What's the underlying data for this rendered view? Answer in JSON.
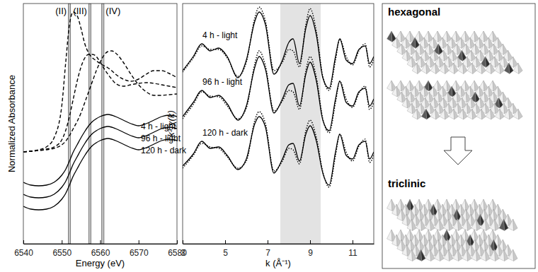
{
  "chart_data": [
    {
      "type": "line",
      "x_label": "Energy (eV)",
      "y_label": "Normalized Absorbance",
      "xlim": [
        6540,
        6580
      ],
      "xticks": [
        6540,
        6550,
        6560,
        6570,
        6580
      ],
      "ylim": [
        0,
        3.4
      ],
      "tick_labels": "x",
      "x": [
        6540,
        6542,
        6544,
        6546,
        6548,
        6550,
        6551,
        6552,
        6553,
        6554,
        6555,
        6556,
        6557,
        6558,
        6559,
        6560,
        6561,
        6562,
        6563,
        6564,
        6566,
        6568,
        6570,
        6572,
        6574,
        6576,
        6578,
        6580
      ],
      "annotations": [
        {
          "value": 6552.0,
          "label": "(II)"
        },
        {
          "value": 6557.3,
          "label": "(III)"
        },
        {
          "value": 6560.7,
          "label": "(IV)"
        }
      ],
      "series": [
        {
          "color": "#000000",
          "line_style": "dashed",
          "values": [
            1.3,
            1.31,
            1.33,
            1.37,
            1.5,
            1.95,
            2.55,
            3.1,
            3.28,
            3.23,
            3.05,
            2.83,
            2.7,
            2.63,
            2.59,
            2.55,
            2.52,
            2.49,
            2.45,
            2.4,
            2.33,
            2.3,
            2.33,
            2.4,
            2.45,
            2.45,
            2.41,
            2.35
          ]
        },
        {
          "color": "#000000",
          "line_style": "dashed",
          "values": [
            1.3,
            1.31,
            1.32,
            1.34,
            1.37,
            1.47,
            1.6,
            1.8,
            2.05,
            2.3,
            2.5,
            2.63,
            2.68,
            2.68,
            2.65,
            2.57,
            2.48,
            2.4,
            2.33,
            2.27,
            2.23,
            2.25,
            2.27,
            2.28,
            2.27,
            2.25,
            2.23,
            2.21
          ]
        },
        {
          "color": "#000000",
          "line_style": "dashed",
          "values": [
            1.3,
            1.31,
            1.32,
            1.33,
            1.35,
            1.4,
            1.45,
            1.53,
            1.63,
            1.73,
            1.85,
            2.0,
            2.15,
            2.3,
            2.45,
            2.57,
            2.67,
            2.72,
            2.73,
            2.7,
            2.57,
            2.4,
            2.25,
            2.15,
            2.1,
            2.1,
            2.11,
            2.12
          ]
        },
        {
          "name": "4 h - light",
          "color": "#000000",
          "line_style": "solid",
          "values": [
            0.87,
            0.83,
            0.82,
            0.83,
            0.87,
            0.97,
            1.05,
            1.17,
            1.3,
            1.4,
            1.5,
            1.59,
            1.67,
            1.73,
            1.77,
            1.8,
            1.82,
            1.83,
            1.82,
            1.8,
            1.75,
            1.7,
            1.67,
            1.7,
            1.75,
            1.8,
            1.82,
            1.8
          ]
        },
        {
          "name": "96 h - light",
          "color": "#000000",
          "line_style": "solid",
          "values": [
            0.7,
            0.66,
            0.65,
            0.66,
            0.7,
            0.8,
            0.88,
            1.0,
            1.13,
            1.23,
            1.33,
            1.42,
            1.5,
            1.56,
            1.6,
            1.63,
            1.65,
            1.66,
            1.65,
            1.63,
            1.58,
            1.53,
            1.5,
            1.53,
            1.58,
            1.63,
            1.65,
            1.63
          ]
        },
        {
          "name": "120 h - dark",
          "color": "#000000",
          "line_style": "solid",
          "values": [
            0.53,
            0.49,
            0.48,
            0.49,
            0.53,
            0.63,
            0.71,
            0.83,
            0.96,
            1.06,
            1.16,
            1.25,
            1.33,
            1.39,
            1.43,
            1.46,
            1.48,
            1.49,
            1.48,
            1.46,
            1.41,
            1.36,
            1.33,
            1.36,
            1.41,
            1.46,
            1.48,
            1.46
          ]
        }
      ]
    },
    {
      "type": "line",
      "x_label": "k (Å⁻¹)",
      "y_label": "k³·χ(k)",
      "xlim": [
        3,
        12
      ],
      "xticks": [
        3,
        5,
        7,
        9,
        11
      ],
      "ylim": [
        0,
        3.4
      ],
      "tick_labels": "x",
      "highlight_range": [
        7.6,
        9.5
      ],
      "x": [
        3,
        3.5,
        3.9,
        4.3,
        4.7,
        5.1,
        5.6,
        6.0,
        6.4,
        6.6,
        6.9,
        7.3,
        7.7,
        8.0,
        8.2,
        8.5,
        8.8,
        9.0,
        9.3,
        9.6,
        9.9,
        10.2,
        10.4,
        10.7,
        11.0,
        11.3,
        11.6,
        11.8,
        12
      ],
      "series": [
        {
          "name": "4 h - light",
          "color": "#000000",
          "line_style": "solid",
          "values": [
            2.45,
            2.65,
            2.83,
            2.73,
            2.77,
            2.65,
            2.35,
            2.6,
            3.15,
            3.28,
            3.1,
            2.4,
            2.6,
            2.85,
            2.9,
            2.55,
            3.05,
            3.23,
            2.95,
            2.35,
            2.2,
            2.65,
            2.9,
            2.6,
            2.55,
            2.75,
            2.8,
            2.55,
            2.65
          ]
        },
        {
          "color": "#000000",
          "line_style": "dotted",
          "values": [
            2.43,
            2.63,
            2.8,
            2.75,
            2.75,
            2.63,
            2.37,
            2.57,
            3.2,
            3.35,
            3.15,
            2.45,
            2.57,
            2.75,
            2.73,
            2.5,
            3.1,
            3.33,
            3.0,
            2.37,
            2.17,
            2.6,
            2.9,
            2.65,
            2.53,
            2.73,
            2.83,
            2.5,
            2.6
          ]
        },
        {
          "name": "96 h - light",
          "color": "#000000",
          "line_style": "solid",
          "values": [
            1.8,
            2.0,
            2.17,
            2.07,
            2.1,
            1.98,
            1.75,
            1.95,
            2.5,
            2.65,
            2.47,
            1.85,
            2.05,
            2.25,
            2.27,
            1.95,
            2.4,
            2.57,
            2.3,
            1.75,
            1.6,
            2.05,
            2.3,
            2.0,
            1.95,
            2.15,
            2.2,
            1.95,
            2.05
          ]
        },
        {
          "color": "#000000",
          "line_style": "dotted",
          "values": [
            1.77,
            1.97,
            2.15,
            2.09,
            2.08,
            1.95,
            1.77,
            1.92,
            2.55,
            2.73,
            2.52,
            1.88,
            2.02,
            2.17,
            2.15,
            1.9,
            2.45,
            2.65,
            2.35,
            1.77,
            1.57,
            2.0,
            2.3,
            2.05,
            1.93,
            2.13,
            2.23,
            1.9,
            2.0
          ]
        },
        {
          "name": "120 h - dark",
          "color": "#000000",
          "line_style": "solid",
          "values": [
            1.1,
            1.27,
            1.45,
            1.35,
            1.37,
            1.25,
            1.05,
            1.2,
            1.7,
            1.8,
            1.65,
            1.0,
            1.2,
            1.4,
            1.42,
            1.17,
            1.55,
            1.67,
            1.45,
            1.0,
            0.83,
            1.3,
            1.55,
            1.25,
            1.2,
            1.4,
            1.45,
            1.2,
            1.3
          ]
        },
        {
          "color": "#000000",
          "line_style": "dotted",
          "values": [
            1.07,
            1.25,
            1.42,
            1.37,
            1.35,
            1.23,
            1.07,
            1.17,
            1.75,
            1.87,
            1.7,
            1.03,
            1.17,
            1.35,
            1.33,
            1.13,
            1.6,
            1.75,
            1.5,
            1.02,
            0.8,
            1.25,
            1.55,
            1.3,
            1.17,
            1.38,
            1.48,
            1.15,
            1.25
          ]
        }
      ]
    }
  ],
  "diagram": {
    "labels": [
      "hexagonal",
      "triclinic"
    ]
  }
}
